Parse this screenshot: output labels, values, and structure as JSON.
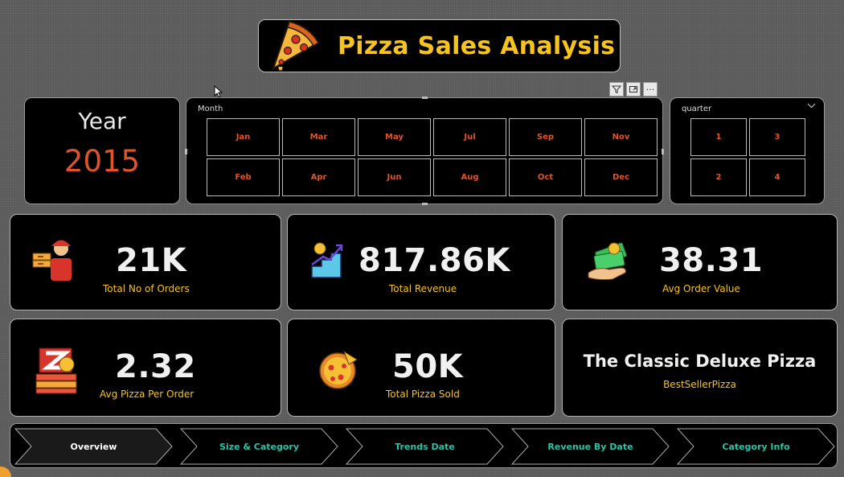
{
  "header": {
    "title": "Pizza Sales Analysis"
  },
  "visual_header": {
    "icons": [
      "filter-icon",
      "focus-mode-icon",
      "more-options-icon"
    ],
    "more_glyph": "···"
  },
  "year_card": {
    "label": "Year",
    "value": "2015"
  },
  "month_slicer": {
    "title": "Month",
    "months": [
      "Jan",
      "Mar",
      "May",
      "Jul",
      "Sep",
      "Nov",
      "Feb",
      "Apr",
      "Jun",
      "Aug",
      "Oct",
      "Dec"
    ]
  },
  "quarter_slicer": {
    "title": "quarter",
    "quarters": [
      "1",
      "3",
      "2",
      "4"
    ]
  },
  "kpis": {
    "orders": {
      "value": "21K",
      "label": "Total No of Orders"
    },
    "revenue": {
      "value": "817.86K",
      "label": "Total Revenue"
    },
    "avg_order": {
      "value": "38.31",
      "label": "Avg Order Value"
    },
    "avg_pizza": {
      "value": "2.32",
      "label": "Avg Pizza Per Order"
    },
    "pizza_sold": {
      "value": "50K",
      "label": "Total Pizza Sold"
    },
    "best_seller": {
      "value": "The Classic Deluxe Pizza",
      "label": "BestSellerPizza"
    }
  },
  "nav": {
    "items": [
      "Overview",
      "Size & Category",
      "Trends Date",
      "Revenue By Date",
      "Category Info"
    ],
    "active_index": 0
  },
  "colors": {
    "accent_yellow": "#f7c31e",
    "accent_orange": "#e0542b",
    "nav_teal": "#28c4a6",
    "background": "#5b5b5b",
    "card": "#000000"
  }
}
